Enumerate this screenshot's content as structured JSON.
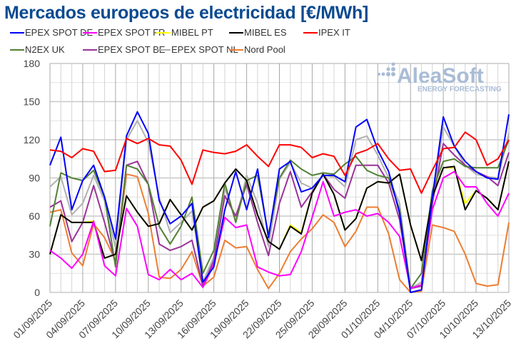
{
  "chart_data": {
    "type": "line",
    "title": "Mercados europeos de electricidad [€/MWh]",
    "xlabel": "",
    "ylabel": "",
    "ylim": [
      0,
      180
    ],
    "yticks": [
      0,
      30,
      60,
      90,
      120,
      150,
      180
    ],
    "grid": true,
    "legend_position": "top",
    "x_start": "01/09/2025",
    "x_end": "13/10/2025",
    "xtick_labels": [
      "01/09/2025",
      "04/09/2025",
      "07/09/2025",
      "10/09/2025",
      "13/09/2025",
      "16/09/2025",
      "19/09/2025",
      "22/09/2025",
      "25/09/2025",
      "28/09/2025",
      "01/10/2025",
      "04/10/2025",
      "07/10/2025",
      "10/10/2025",
      "13/10/2025"
    ],
    "watermark": {
      "brand": "AleaSoft",
      "tagline": "ENERGY FORECASTING"
    },
    "series": [
      {
        "name": "EPEX SPOT DE",
        "color": "#0000ff",
        "values": [
          100,
          122,
          65,
          88,
          100,
          75,
          42,
          123,
          142,
          125,
          72,
          54,
          60,
          70,
          8,
          20,
          65,
          95,
          65,
          97,
          43,
          97,
          103,
          79,
          82,
          92,
          92,
          87,
          130,
          136,
          112,
          95,
          62,
          0,
          2,
          75,
          138,
          115,
          103,
          95,
          90,
          89,
          140
        ]
      },
      {
        "name": "EPEX SPOT FR",
        "color": "#ff00ff",
        "values": [
          33,
          27,
          19,
          30,
          56,
          21,
          13,
          66,
          52,
          14,
          10,
          18,
          10,
          15,
          4,
          22,
          59,
          51,
          53,
          20,
          16,
          13,
          14,
          32,
          59,
          87,
          60,
          63,
          65,
          60,
          62,
          55,
          44,
          3,
          6,
          65,
          90,
          95,
          83,
          83,
          70,
          60,
          78
        ]
      },
      {
        "name": "MIBEL PT",
        "color": "#ffff00",
        "values": [
          30,
          61,
          55,
          55,
          56,
          27,
          30,
          76,
          63,
          52,
          54,
          73,
          61,
          49,
          67,
          72,
          86,
          97,
          88,
          61,
          40,
          34,
          53,
          47,
          78,
          93,
          77,
          49,
          58,
          82,
          87,
          86,
          93,
          53,
          25,
          75,
          98,
          98,
          70,
          80,
          74,
          65,
          103
        ]
      },
      {
        "name": "MIBEL ES",
        "color": "#000000",
        "values": [
          30,
          61,
          55,
          55,
          55,
          27,
          30,
          76,
          63,
          52,
          54,
          73,
          61,
          49,
          67,
          72,
          86,
          97,
          88,
          61,
          40,
          34,
          52,
          46,
          78,
          93,
          77,
          49,
          58,
          82,
          87,
          86,
          93,
          53,
          25,
          75,
          98,
          99,
          65,
          80,
          74,
          65,
          103
        ]
      },
      {
        "name": "IPEX IT",
        "color": "#ff0000",
        "values": [
          112,
          111,
          106,
          113,
          111,
          95,
          96,
          121,
          117,
          121,
          116,
          115,
          104,
          85,
          112,
          110,
          109,
          111,
          116,
          107,
          99,
          116,
          116,
          114,
          106,
          109,
          107,
          92,
          109,
          112,
          117,
          105,
          96,
          97,
          78,
          96,
          113,
          114,
          126,
          120,
          100,
          105,
          120
        ]
      },
      {
        "name": "N2EX UK",
        "color": "#538135",
        "values": [
          52,
          94,
          90,
          88,
          96,
          75,
          20,
          100,
          97,
          85,
          52,
          38,
          52,
          75,
          15,
          33,
          86,
          55,
          88,
          92,
          45,
          90,
          104,
          97,
          92,
          94,
          93,
          101,
          107,
          96,
          92,
          90,
          65,
          3,
          15,
          80,
          103,
          105,
          99,
          98,
          98,
          98,
          120
        ]
      },
      {
        "name": "EPEX SPOT BE",
        "color": "#993399",
        "values": [
          67,
          72,
          40,
          55,
          84,
          55,
          23,
          100,
          103,
          85,
          38,
          33,
          36,
          41,
          5,
          25,
          76,
          60,
          85,
          55,
          29,
          70,
          95,
          67,
          79,
          93,
          81,
          74,
          100,
          100,
          100,
          86,
          57,
          3,
          5,
          70,
          117,
          108,
          100,
          95,
          91,
          84,
          110
        ]
      },
      {
        "name": "EPEX SPOT NL",
        "color": "#b0b0b0",
        "values": [
          83,
          91,
          61,
          70,
          92,
          72,
          35,
          120,
          135,
          118,
          75,
          47,
          55,
          64,
          8,
          28,
          82,
          56,
          92,
          70,
          36,
          89,
          102,
          86,
          82,
          92,
          91,
          83,
          120,
          123,
          108,
          90,
          70,
          3,
          8,
          72,
          130,
          115,
          100,
          93,
          91,
          90,
          125
        ]
      },
      {
        "name": "Nord Pool",
        "color": "#ed7d31",
        "values": [
          63,
          65,
          31,
          21,
          54,
          43,
          25,
          93,
          91,
          62,
          12,
          11,
          18,
          32,
          5,
          12,
          41,
          35,
          36,
          18,
          3,
          15,
          32,
          42,
          50,
          61,
          55,
          36,
          48,
          67,
          67,
          46,
          10,
          0,
          1,
          53,
          51,
          48,
          30,
          7,
          5,
          6,
          55
        ]
      }
    ]
  }
}
